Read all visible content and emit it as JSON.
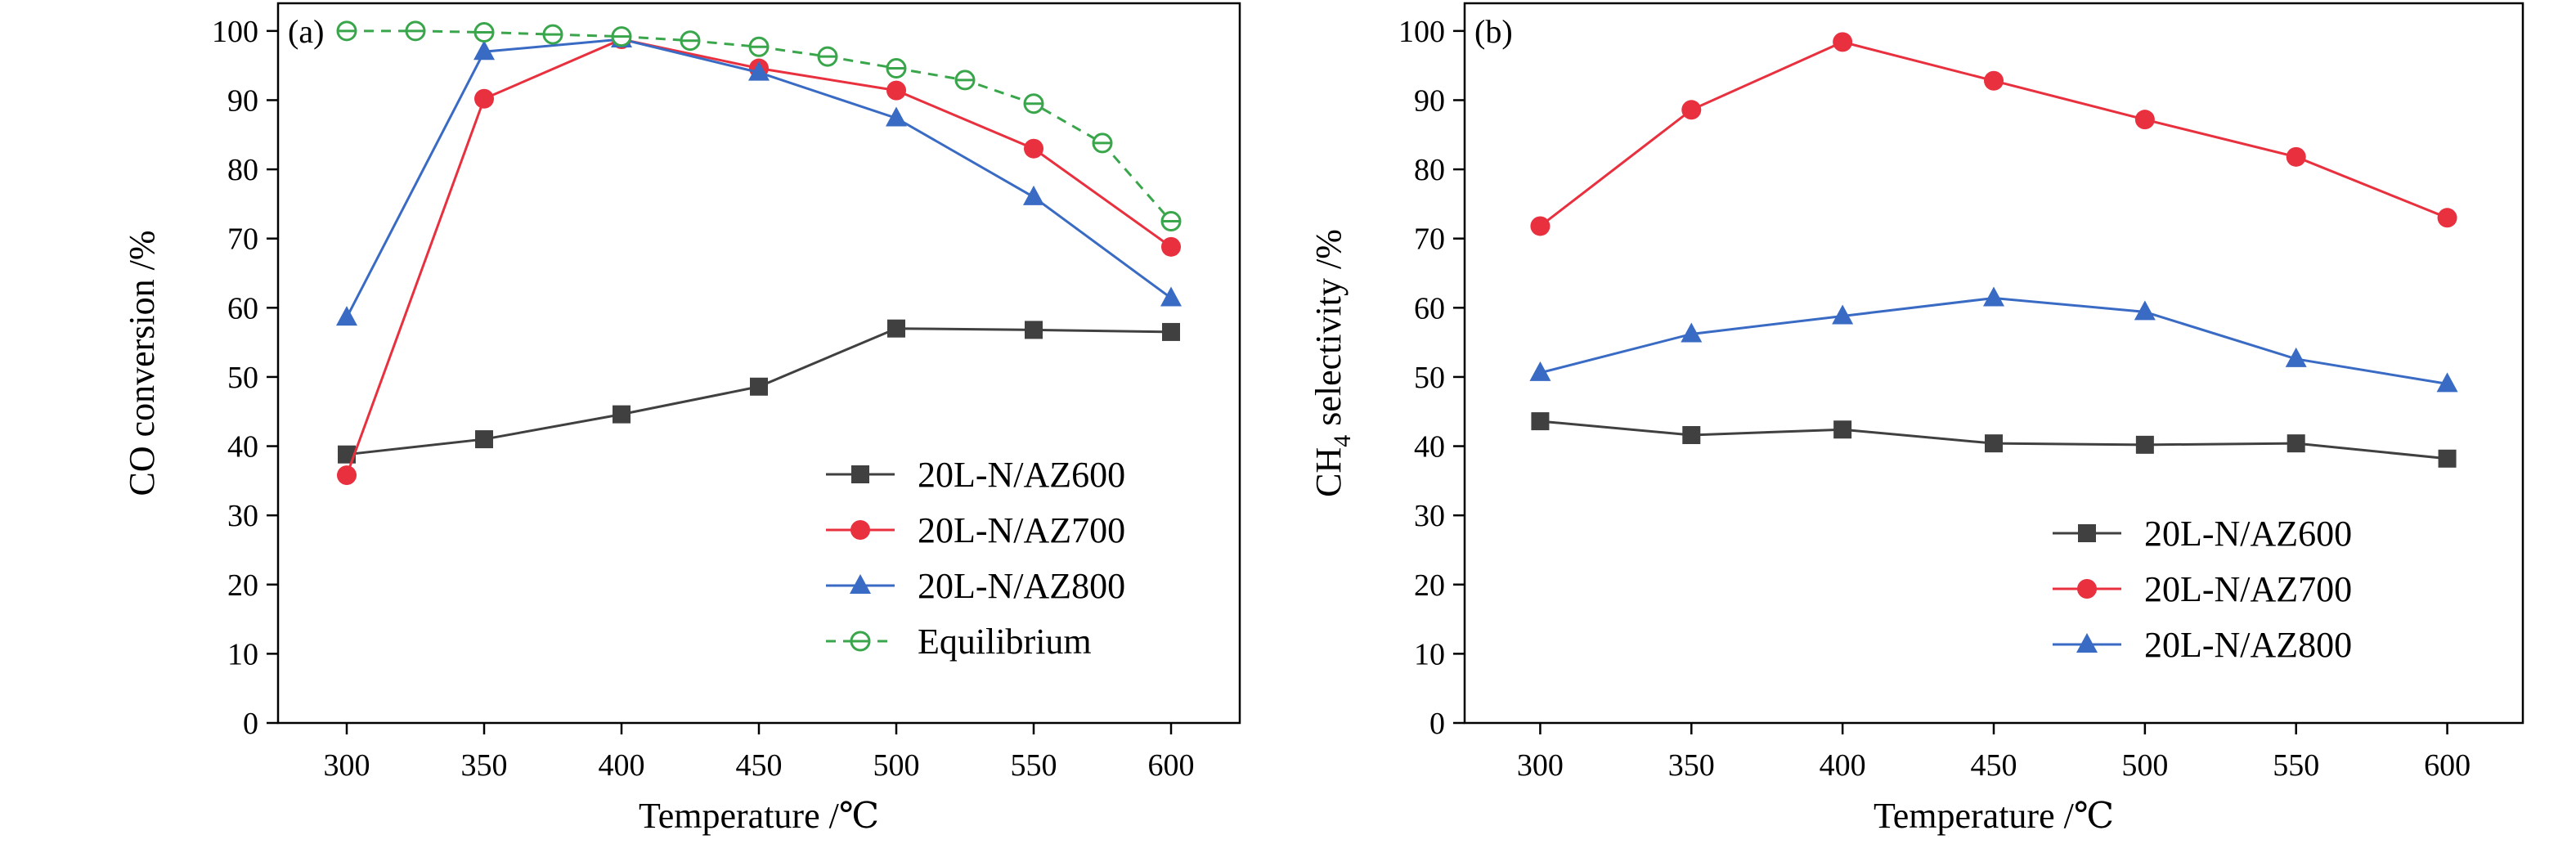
{
  "chart_data": [
    {
      "type": "line",
      "panel_label": "(a)",
      "xlabel": "Temperature /℃",
      "ylabel": "CO conversion /%",
      "xlim": [
        275,
        625
      ],
      "ylim": [
        0,
        104
      ],
      "xticks": [
        300,
        350,
        400,
        450,
        500,
        550,
        600
      ],
      "yticks": [
        0,
        10,
        20,
        30,
        40,
        50,
        60,
        70,
        80,
        90,
        100
      ],
      "legend_position": "bottom-right",
      "grid": false,
      "series": [
        {
          "name": "20L-N/AZ600",
          "color": "#404040",
          "marker": "square",
          "dash": "solid",
          "x": [
            300,
            350,
            400,
            450,
            500,
            550,
            600
          ],
          "y": [
            38.8,
            41.0,
            44.6,
            48.6,
            57.0,
            56.8,
            56.5
          ]
        },
        {
          "name": "20L-N/AZ700",
          "color": "#e8303e",
          "marker": "circle",
          "dash": "solid",
          "x": [
            300,
            350,
            400,
            450,
            500,
            550,
            600
          ],
          "y": [
            35.8,
            90.2,
            98.8,
            94.6,
            91.4,
            83.0,
            68.8
          ]
        },
        {
          "name": "20L-N/AZ800",
          "color": "#3a6bc4",
          "marker": "triangle",
          "dash": "solid",
          "x": [
            300,
            350,
            400,
            450,
            500,
            550,
            600
          ],
          "y": [
            58.6,
            97.0,
            98.8,
            94.0,
            87.4,
            76.0,
            61.4
          ]
        },
        {
          "name": "Equilibrium",
          "color": "#3aa64c",
          "marker": "open-circle",
          "dash": "dashed",
          "x": [
            300,
            325,
            350,
            375,
            400,
            425,
            450,
            475,
            500,
            525,
            550,
            575,
            600
          ],
          "y": [
            100.0,
            100.0,
            99.8,
            99.5,
            99.2,
            98.6,
            97.7,
            96.3,
            94.6,
            92.9,
            89.5,
            83.8,
            72.5
          ]
        }
      ]
    },
    {
      "type": "line",
      "panel_label": "(b)",
      "xlabel": "Temperature /℃",
      "ylabel_main": "CH",
      "ylabel_sub": "4",
      "ylabel_rest": " selectivity /%",
      "xlim": [
        275,
        625
      ],
      "ylim": [
        0,
        104
      ],
      "xticks": [
        300,
        350,
        400,
        450,
        500,
        550,
        600
      ],
      "yticks": [
        0,
        10,
        20,
        30,
        40,
        50,
        60,
        70,
        80,
        90,
        100
      ],
      "legend_position": "bottom-right",
      "grid": false,
      "series": [
        {
          "name": "20L-N/AZ600",
          "color": "#404040",
          "marker": "square",
          "dash": "solid",
          "x": [
            300,
            350,
            400,
            450,
            500,
            550,
            600
          ],
          "y": [
            43.6,
            41.6,
            42.4,
            40.4,
            40.2,
            40.4,
            38.2
          ]
        },
        {
          "name": "20L-N/AZ700",
          "color": "#e8303e",
          "marker": "circle",
          "dash": "solid",
          "x": [
            300,
            350,
            400,
            450,
            500,
            550,
            600
          ],
          "y": [
            71.8,
            88.6,
            98.4,
            92.8,
            87.2,
            81.8,
            73.0
          ]
        },
        {
          "name": "20L-N/AZ800",
          "color": "#3a6bc4",
          "marker": "triangle",
          "dash": "solid",
          "x": [
            300,
            350,
            400,
            450,
            500,
            550,
            600
          ],
          "y": [
            50.6,
            56.2,
            58.8,
            61.4,
            59.4,
            52.6,
            49.0
          ]
        }
      ]
    }
  ]
}
